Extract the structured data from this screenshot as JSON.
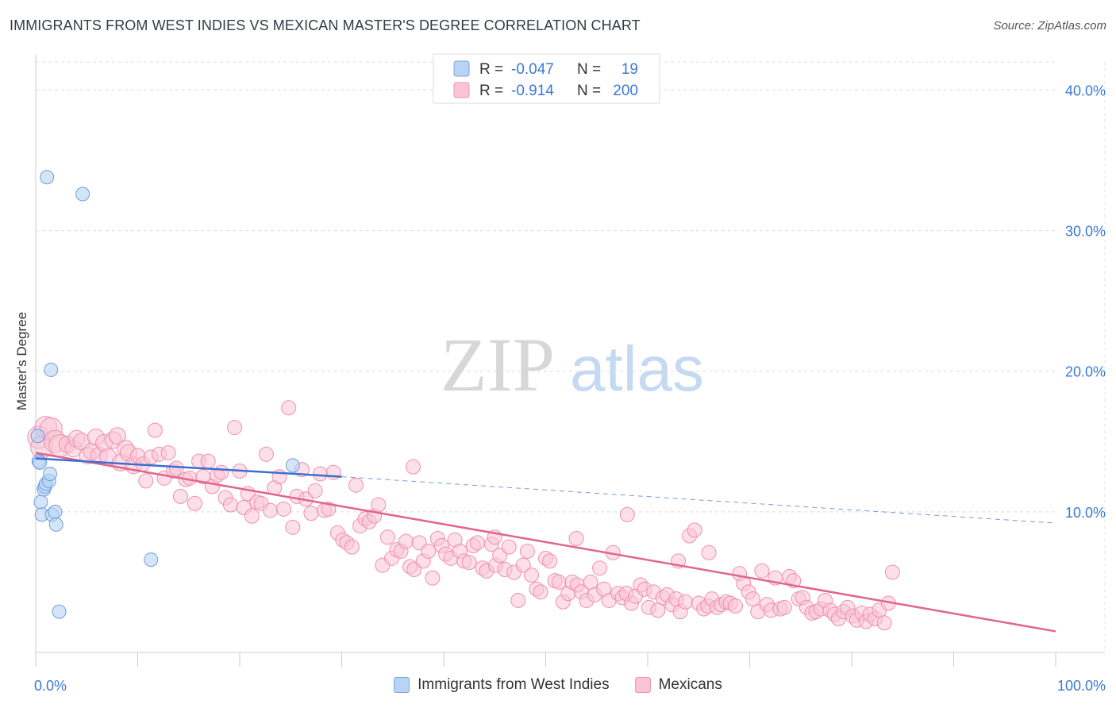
{
  "title": "IMMIGRANTS FROM WEST INDIES VS MEXICAN MASTER'S DEGREE CORRELATION CHART",
  "source": "Source: ZipAtlas.com",
  "watermark": {
    "part1": "ZIP",
    "part2": "atlas"
  },
  "colors": {
    "blue": "#6f9fdc",
    "blue_fill": "#b8d3f4",
    "blue_line": "#3a6fd0",
    "pink": "#ee8fb0",
    "pink_fill": "#f9c5d6",
    "pink_line": "#e0658f",
    "axis_text": "#3b78d4"
  },
  "legend_top": [
    {
      "r_label": "R =",
      "r_value": "-0.047",
      "n_label": "N =",
      "n_value": "19"
    },
    {
      "r_label": "R =",
      "r_value": "-0.914",
      "n_label": "N =",
      "n_value": "200"
    }
  ],
  "chart_data": {
    "type": "scatter",
    "title": "IMMIGRANTS FROM WEST INDIES VS MEXICAN MASTER'S DEGREE CORRELATION CHART",
    "xlabel": "",
    "ylabel": "Master's Degree",
    "xlim": [
      0,
      100
    ],
    "ylim": [
      0,
      42
    ],
    "x_tick_labels": [
      "0.0%",
      "100.0%"
    ],
    "y_ticks": [
      10,
      20,
      30,
      40
    ],
    "y_tick_labels": [
      "10.0%",
      "20.0%",
      "30.0%",
      "40.0%"
    ],
    "legend_position": "top-center",
    "series": [
      {
        "name": "Immigrants from West Indies",
        "color": "blue",
        "points": [
          [
            0.2,
            15.4
          ],
          [
            0.3,
            13.6
          ],
          [
            0.4,
            13.5
          ],
          [
            0.5,
            10.7
          ],
          [
            0.6,
            9.8
          ],
          [
            0.8,
            11.6
          ],
          [
            0.9,
            11.8
          ],
          [
            1.0,
            12.0
          ],
          [
            1.1,
            33.8
          ],
          [
            1.3,
            12.2
          ],
          [
            1.4,
            12.7
          ],
          [
            1.5,
            20.1
          ],
          [
            1.6,
            9.8
          ],
          [
            1.9,
            10.0
          ],
          [
            2.0,
            9.1
          ],
          [
            2.3,
            2.9
          ],
          [
            4.6,
            32.6
          ],
          [
            11.3,
            6.6
          ],
          [
            25.2,
            13.3
          ]
        ],
        "trend": {
          "x": [
            0,
            30
          ],
          "y": [
            13.8,
            12.5
          ]
        },
        "trend_dashed": {
          "x": [
            30,
            100
          ],
          "y": [
            12.5,
            9.2
          ]
        }
      },
      {
        "name": "Mexicans",
        "color": "pink",
        "trend": {
          "x": [
            0,
            100
          ],
          "y": [
            14.2,
            1.5
          ]
        },
        "points": [
          [
            0.3,
            15.3
          ],
          [
            0.6,
            14.6
          ],
          [
            1.0,
            16.0
          ],
          [
            1.5,
            15.9
          ],
          [
            1.9,
            15.0
          ],
          [
            2.4,
            14.7
          ],
          [
            3.1,
            14.8
          ],
          [
            3.7,
            14.5
          ],
          [
            4.0,
            15.2
          ],
          [
            4.5,
            15.0
          ],
          [
            5.1,
            14.0
          ],
          [
            5.5,
            14.3
          ],
          [
            5.9,
            15.3
          ],
          [
            6.2,
            14.0
          ],
          [
            6.7,
            14.9
          ],
          [
            7.1,
            13.9
          ],
          [
            7.6,
            15.1
          ],
          [
            8.0,
            15.4
          ],
          [
            8.3,
            13.5
          ],
          [
            8.8,
            14.5
          ],
          [
            9.1,
            14.2
          ],
          [
            9.6,
            13.3
          ],
          [
            10.0,
            14.0
          ],
          [
            10.5,
            13.4
          ],
          [
            10.8,
            12.2
          ],
          [
            11.3,
            13.9
          ],
          [
            11.7,
            15.8
          ],
          [
            12.1,
            14.1
          ],
          [
            12.6,
            12.4
          ],
          [
            13.0,
            14.2
          ],
          [
            13.5,
            12.9
          ],
          [
            13.8,
            13.1
          ],
          [
            14.2,
            11.1
          ],
          [
            14.7,
            12.3
          ],
          [
            15.1,
            12.4
          ],
          [
            15.6,
            10.6
          ],
          [
            16.0,
            13.6
          ],
          [
            16.4,
            12.5
          ],
          [
            16.9,
            13.6
          ],
          [
            17.3,
            11.8
          ],
          [
            17.8,
            12.6
          ],
          [
            18.2,
            12.8
          ],
          [
            18.6,
            11.0
          ],
          [
            19.1,
            10.5
          ],
          [
            19.5,
            16.0
          ],
          [
            20.0,
            12.9
          ],
          [
            20.4,
            10.3
          ],
          [
            20.8,
            11.3
          ],
          [
            21.2,
            9.7
          ],
          [
            21.7,
            10.7
          ],
          [
            22.1,
            10.6
          ],
          [
            22.6,
            14.1
          ],
          [
            23.0,
            10.1
          ],
          [
            23.4,
            11.7
          ],
          [
            23.9,
            12.5
          ],
          [
            24.3,
            10.2
          ],
          [
            24.8,
            17.4
          ],
          [
            25.2,
            8.9
          ],
          [
            25.6,
            11.1
          ],
          [
            26.1,
            13.0
          ],
          [
            26.5,
            10.9
          ],
          [
            27.0,
            9.9
          ],
          [
            27.4,
            11.5
          ],
          [
            27.9,
            12.7
          ],
          [
            28.3,
            10.1
          ],
          [
            28.7,
            10.2
          ],
          [
            29.2,
            12.8
          ],
          [
            29.6,
            8.5
          ],
          [
            30.1,
            8.0
          ],
          [
            30.5,
            7.8
          ],
          [
            31.0,
            7.5
          ],
          [
            31.4,
            11.9
          ],
          [
            31.8,
            9.0
          ],
          [
            32.3,
            9.5
          ],
          [
            32.7,
            9.3
          ],
          [
            33.2,
            9.7
          ],
          [
            33.6,
            10.5
          ],
          [
            34.0,
            6.2
          ],
          [
            34.5,
            8.2
          ],
          [
            34.9,
            6.7
          ],
          [
            35.4,
            7.3
          ],
          [
            35.8,
            7.2
          ],
          [
            36.3,
            7.9
          ],
          [
            36.7,
            6.1
          ],
          [
            37.1,
            5.9
          ],
          [
            37.6,
            7.8
          ],
          [
            38.0,
            6.5
          ],
          [
            38.5,
            7.2
          ],
          [
            38.9,
            5.3
          ],
          [
            39.4,
            8.1
          ],
          [
            39.8,
            7.6
          ],
          [
            40.2,
            7.0
          ],
          [
            40.7,
            6.7
          ],
          [
            41.1,
            8.0
          ],
          [
            41.6,
            7.2
          ],
          [
            42.0,
            6.5
          ],
          [
            42.5,
            6.4
          ],
          [
            42.9,
            7.6
          ],
          [
            43.3,
            7.8
          ],
          [
            43.8,
            6.0
          ],
          [
            44.2,
            5.8
          ],
          [
            44.7,
            7.7
          ],
          [
            45.1,
            6.2
          ],
          [
            45.5,
            6.9
          ],
          [
            46.0,
            5.9
          ],
          [
            46.4,
            7.5
          ],
          [
            46.9,
            5.7
          ],
          [
            47.3,
            3.7
          ],
          [
            47.8,
            6.2
          ],
          [
            48.2,
            7.2
          ],
          [
            48.6,
            5.5
          ],
          [
            49.1,
            4.5
          ],
          [
            49.5,
            4.3
          ],
          [
            50.0,
            6.7
          ],
          [
            50.4,
            6.5
          ],
          [
            50.9,
            5.1
          ],
          [
            51.3,
            5.0
          ],
          [
            51.7,
            3.6
          ],
          [
            52.2,
            4.2
          ],
          [
            52.6,
            5.0
          ],
          [
            53.1,
            4.8
          ],
          [
            53.5,
            4.3
          ],
          [
            54.0,
            3.7
          ],
          [
            54.4,
            5.0
          ],
          [
            54.8,
            4.1
          ],
          [
            55.3,
            6.0
          ],
          [
            55.7,
            4.5
          ],
          [
            56.2,
            3.7
          ],
          [
            56.6,
            7.1
          ],
          [
            57.1,
            4.2
          ],
          [
            57.5,
            3.9
          ],
          [
            57.9,
            4.2
          ],
          [
            58.4,
            3.5
          ],
          [
            58.8,
            4.0
          ],
          [
            59.3,
            4.8
          ],
          [
            59.7,
            4.5
          ],
          [
            60.1,
            3.2
          ],
          [
            60.6,
            4.3
          ],
          [
            61.0,
            3.0
          ],
          [
            61.5,
            3.9
          ],
          [
            61.9,
            4.1
          ],
          [
            62.4,
            3.4
          ],
          [
            62.8,
            3.8
          ],
          [
            63.2,
            2.9
          ],
          [
            63.7,
            3.6
          ],
          [
            64.1,
            8.3
          ],
          [
            64.6,
            8.7
          ],
          [
            65.0,
            3.5
          ],
          [
            65.5,
            3.1
          ],
          [
            65.9,
            3.3
          ],
          [
            66.3,
            3.8
          ],
          [
            66.8,
            3.2
          ],
          [
            67.2,
            3.4
          ],
          [
            67.7,
            3.6
          ],
          [
            68.1,
            3.5
          ],
          [
            68.6,
            3.3
          ],
          [
            69.0,
            5.6
          ],
          [
            69.4,
            4.9
          ],
          [
            69.9,
            4.3
          ],
          [
            70.3,
            3.8
          ],
          [
            70.8,
            2.9
          ],
          [
            71.2,
            5.8
          ],
          [
            71.7,
            3.4
          ],
          [
            72.1,
            3.0
          ],
          [
            72.5,
            5.3
          ],
          [
            73.0,
            3.1
          ],
          [
            73.4,
            3.2
          ],
          [
            73.9,
            5.4
          ],
          [
            74.3,
            5.1
          ],
          [
            74.8,
            3.8
          ],
          [
            75.2,
            3.9
          ],
          [
            75.6,
            3.2
          ],
          [
            76.1,
            2.8
          ],
          [
            76.5,
            2.9
          ],
          [
            77.0,
            3.1
          ],
          [
            77.4,
            3.7
          ],
          [
            77.9,
            3.0
          ],
          [
            78.3,
            2.7
          ],
          [
            78.7,
            2.4
          ],
          [
            79.2,
            2.9
          ],
          [
            79.6,
            3.2
          ],
          [
            80.1,
            2.6
          ],
          [
            80.5,
            2.3
          ],
          [
            81.0,
            2.8
          ],
          [
            81.4,
            2.2
          ],
          [
            81.8,
            2.7
          ],
          [
            82.3,
            2.4
          ],
          [
            82.7,
            3.0
          ],
          [
            83.2,
            2.1
          ],
          [
            83.6,
            3.5
          ],
          [
            84.0,
            5.7
          ],
          [
            63.0,
            6.5
          ],
          [
            58.0,
            9.8
          ],
          [
            45.0,
            8.2
          ],
          [
            37.0,
            13.2
          ],
          [
            53.0,
            8.1
          ],
          [
            66.0,
            7.1
          ]
        ]
      }
    ]
  }
}
